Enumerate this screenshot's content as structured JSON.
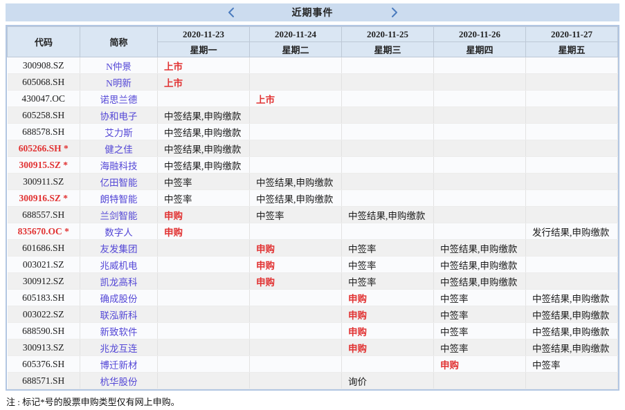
{
  "title_bar": {
    "title": "近期事件",
    "prev_icon": "chevron-left",
    "next_icon": "chevron-right"
  },
  "table": {
    "code_header": "代码",
    "name_header": "简称",
    "date_columns": [
      {
        "date": "2020-11-23",
        "weekday": "星期一"
      },
      {
        "date": "2020-11-24",
        "weekday": "星期二"
      },
      {
        "date": "2020-11-25",
        "weekday": "星期三"
      },
      {
        "date": "2020-11-26",
        "weekday": "星期四"
      },
      {
        "date": "2020-11-27",
        "weekday": "星期五"
      }
    ],
    "rows": [
      {
        "code": "300908.SZ",
        "code_red": false,
        "name": "N仲景",
        "events": [
          {
            "t": "上市",
            "red": true
          },
          null,
          null,
          null,
          null
        ]
      },
      {
        "code": "605068.SH",
        "code_red": false,
        "name": "N明新",
        "events": [
          {
            "t": "上市",
            "red": true
          },
          null,
          null,
          null,
          null
        ]
      },
      {
        "code": "430047.OC",
        "code_red": false,
        "name": "诺思兰德",
        "events": [
          null,
          {
            "t": "上市",
            "red": true
          },
          null,
          null,
          null
        ]
      },
      {
        "code": "605258.SH",
        "code_red": false,
        "name": "协和电子",
        "events": [
          {
            "t": "中签结果,申购缴款",
            "red": false
          },
          null,
          null,
          null,
          null
        ]
      },
      {
        "code": "688578.SH",
        "code_red": false,
        "name": "艾力斯",
        "events": [
          {
            "t": "中签结果,申购缴款",
            "red": false
          },
          null,
          null,
          null,
          null
        ]
      },
      {
        "code": "605266.SH *",
        "code_red": true,
        "name": "健之佳",
        "events": [
          {
            "t": "中签结果,申购缴款",
            "red": false
          },
          null,
          null,
          null,
          null
        ]
      },
      {
        "code": "300915.SZ *",
        "code_red": true,
        "name": "海融科技",
        "events": [
          {
            "t": "中签结果,申购缴款",
            "red": false
          },
          null,
          null,
          null,
          null
        ]
      },
      {
        "code": "300911.SZ",
        "code_red": false,
        "name": "亿田智能",
        "events": [
          {
            "t": "中签率",
            "red": false
          },
          {
            "t": "中签结果,申购缴款",
            "red": false
          },
          null,
          null,
          null
        ]
      },
      {
        "code": "300916.SZ *",
        "code_red": true,
        "name": "朗特智能",
        "events": [
          {
            "t": "中签率",
            "red": false
          },
          {
            "t": "中签结果,申购缴款",
            "red": false
          },
          null,
          null,
          null
        ]
      },
      {
        "code": "688557.SH",
        "code_red": false,
        "name": "兰剑智能",
        "events": [
          {
            "t": "申购",
            "red": true
          },
          {
            "t": "中签率",
            "red": false
          },
          {
            "t": "中签结果,申购缴款",
            "red": false
          },
          null,
          null
        ]
      },
      {
        "code": "835670.OC *",
        "code_red": true,
        "name": "数字人",
        "events": [
          {
            "t": "申购",
            "red": true
          },
          null,
          null,
          null,
          {
            "t": "发行结果,申购缴款",
            "red": false
          }
        ]
      },
      {
        "code": "601686.SH",
        "code_red": false,
        "name": "友发集团",
        "events": [
          null,
          {
            "t": "申购",
            "red": true
          },
          {
            "t": "中签率",
            "red": false
          },
          {
            "t": "中签结果,申购缴款",
            "red": false
          },
          null
        ]
      },
      {
        "code": "003021.SZ",
        "code_red": false,
        "name": "兆威机电",
        "events": [
          null,
          {
            "t": "申购",
            "red": true
          },
          {
            "t": "中签率",
            "red": false
          },
          {
            "t": "中签结果,申购缴款",
            "red": false
          },
          null
        ]
      },
      {
        "code": "300912.SZ",
        "code_red": false,
        "name": "凯龙高科",
        "events": [
          null,
          {
            "t": "申购",
            "red": true
          },
          {
            "t": "中签率",
            "red": false
          },
          {
            "t": "中签结果,申购缴款",
            "red": false
          },
          null
        ]
      },
      {
        "code": "605183.SH",
        "code_red": false,
        "name": "确成股份",
        "events": [
          null,
          null,
          {
            "t": "申购",
            "red": true
          },
          {
            "t": "中签率",
            "red": false
          },
          {
            "t": "中签结果,申购缴款",
            "red": false
          }
        ]
      },
      {
        "code": "003022.SZ",
        "code_red": false,
        "name": "联泓新科",
        "events": [
          null,
          null,
          {
            "t": "申购",
            "red": true
          },
          {
            "t": "中签率",
            "red": false
          },
          {
            "t": "中签结果,申购缴款",
            "red": false
          }
        ]
      },
      {
        "code": "688590.SH",
        "code_red": false,
        "name": "新致软件",
        "events": [
          null,
          null,
          {
            "t": "申购",
            "red": true
          },
          {
            "t": "中签率",
            "red": false
          },
          {
            "t": "中签结果,申购缴款",
            "red": false
          }
        ]
      },
      {
        "code": "300913.SZ",
        "code_red": false,
        "name": "兆龙互连",
        "events": [
          null,
          null,
          {
            "t": "申购",
            "red": true
          },
          {
            "t": "中签率",
            "red": false
          },
          {
            "t": "中签结果,申购缴款",
            "red": false
          }
        ]
      },
      {
        "code": "605376.SH",
        "code_red": false,
        "name": "博迁新材",
        "events": [
          null,
          null,
          null,
          {
            "t": "申购",
            "red": true
          },
          {
            "t": "中签率",
            "red": false
          }
        ]
      },
      {
        "code": "688571.SH",
        "code_red": false,
        "name": "杭华股份",
        "events": [
          null,
          null,
          {
            "t": "询价",
            "red": false
          },
          null,
          null
        ]
      }
    ]
  },
  "footnote": "注 : 标记*号的股票申购类型仅有网上申购。",
  "colors": {
    "titlebar_bg": "#ccdcef",
    "header_bg": "#dae6f3",
    "table_border": "#b2c6e2",
    "event_red": "#e13232",
    "name_link": "#5447d6",
    "chevron_blue": "#4b7bbe",
    "row_odd": "#fafbfd",
    "row_even": "#f0f0f0"
  }
}
